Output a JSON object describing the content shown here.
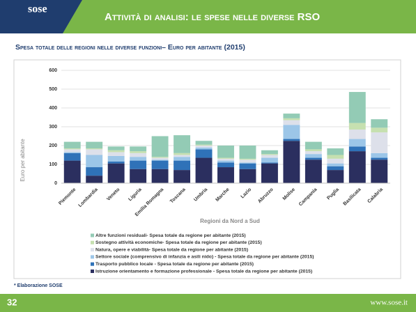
{
  "header": {
    "logo": "sose",
    "title": "Attività di analisi: le spese nelle diverse RSO"
  },
  "chart_data": {
    "type": "stacked-bar",
    "title": "Spesa totale delle regioni nelle diverse funzioni– Euro per abitante (2015)",
    "x_label": "Regioni da Nord a Sud",
    "y_label": "Euro per abitante",
    "categories": [
      "Piemonte",
      "Lombardia",
      "Veneto",
      "Liguria",
      "Emilia Romagna",
      "Toscana",
      "Umbria",
      "Marche",
      "Lazio",
      "Abruzzo",
      "Molise",
      "Campania",
      "Puglia",
      "Basilicata",
      "Calabria"
    ],
    "series": [
      {
        "name": "Istruzione orientamento e formazione professionale - Spesa totale da regione per abitante (2015)",
        "color": "#2b2f5f",
        "values": [
          120,
          40,
          105,
          75,
          75,
          70,
          135,
          85,
          75,
          105,
          225,
          125,
          70,
          170,
          125
        ]
      },
      {
        "name": "Trasporto pubblico locale - Spesa totale da regione per abitante (2015)",
        "color": "#2f72b8",
        "values": [
          40,
          45,
          10,
          45,
          45,
          50,
          45,
          25,
          30,
          5,
          10,
          10,
          20,
          25,
          10
        ]
      },
      {
        "name": "Settore sociale (comprensivo di infanzia e asili nido) - Spesa totale da regione per abitante (2015)",
        "color": "#9cc6e8",
        "values": [
          5,
          65,
          30,
          20,
          5,
          20,
          10,
          10,
          5,
          25,
          75,
          20,
          15,
          40,
          25
        ]
      },
      {
        "name": "Natura, opere e viabilità- Spesa totale da regione per abitante (2015)",
        "color": "#dde0ea",
        "values": [
          15,
          30,
          20,
          20,
          10,
          10,
          10,
          10,
          15,
          15,
          25,
          15,
          25,
          50,
          110
        ]
      },
      {
        "name": "Sostegno attività economiche- Spesa totale da regione per abitante (2015)",
        "color": "#c6e0b0",
        "values": [
          5,
          5,
          10,
          10,
          5,
          10,
          5,
          5,
          5,
          5,
          10,
          10,
          20,
          35,
          25
        ]
      },
      {
        "name": "Altre funzioni residuali- Spesa totale da regione per abitante (2015)",
        "color": "#93cbb5",
        "values": [
          35,
          35,
          20,
          25,
          110,
          95,
          20,
          65,
          70,
          20,
          25,
          40,
          35,
          165,
          45
        ]
      }
    ],
    "ylim": [
      0,
      600
    ],
    "yticks": [
      0,
      100,
      200,
      300,
      400,
      500,
      600
    ],
    "grid": true
  },
  "footer": {
    "note": "* Elaborazione SOSE",
    "page": "32",
    "url": "www.sose.it"
  }
}
